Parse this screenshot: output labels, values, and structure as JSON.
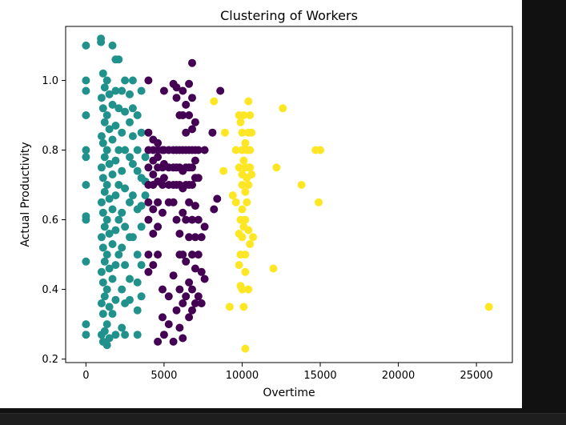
{
  "chart_data": {
    "type": "scatter",
    "title": "Clustering of Workers",
    "xlabel": "Overtime",
    "ylabel": "Actual Productivity",
    "xlim": [
      -1300,
      27300
    ],
    "ylim": [
      0.19,
      1.155
    ],
    "xticks": [
      0,
      5000,
      10000,
      15000,
      20000,
      25000
    ],
    "xtick_labels": [
      "0",
      "5000",
      "10000",
      "15000",
      "20000",
      "25000"
    ],
    "yticks": [
      0.2,
      0.4,
      0.6,
      0.8,
      1.0
    ],
    "ytick_labels": [
      "0.2",
      "0.4",
      "0.6",
      "0.8",
      "1.0"
    ],
    "grid": false,
    "legend": "none",
    "colormap": "viridis",
    "series": [
      {
        "color": "#21918c",
        "points": [
          [
            0,
            1.1
          ],
          [
            0,
            1.0
          ],
          [
            0,
            0.97
          ],
          [
            0,
            0.9
          ],
          [
            0,
            0.8
          ],
          [
            0,
            0.78
          ],
          [
            0,
            0.7
          ],
          [
            0,
            0.61
          ],
          [
            0,
            0.6
          ],
          [
            0,
            0.48
          ],
          [
            0,
            0.3
          ],
          [
            0,
            0.27
          ],
          [
            960,
            1.11
          ],
          [
            960,
            1.12
          ],
          [
            1000,
            0.95
          ],
          [
            1000,
            0.84
          ],
          [
            1000,
            0.75
          ],
          [
            1000,
            0.65
          ],
          [
            1000,
            0.55
          ],
          [
            1000,
            0.45
          ],
          [
            1000,
            0.36
          ],
          [
            1000,
            0.27
          ],
          [
            1100,
            1.02
          ],
          [
            1100,
            0.92
          ],
          [
            1100,
            0.82
          ],
          [
            1100,
            0.72
          ],
          [
            1100,
            0.62
          ],
          [
            1100,
            0.52
          ],
          [
            1100,
            0.42
          ],
          [
            1100,
            0.33
          ],
          [
            1100,
            0.25
          ],
          [
            1200,
            0.98
          ],
          [
            1200,
            0.88
          ],
          [
            1200,
            0.78
          ],
          [
            1200,
            0.68
          ],
          [
            1200,
            0.58
          ],
          [
            1200,
            0.48
          ],
          [
            1200,
            0.38
          ],
          [
            1200,
            0.28
          ],
          [
            1350,
            1.0
          ],
          [
            1350,
            0.9
          ],
          [
            1350,
            0.8
          ],
          [
            1350,
            0.7
          ],
          [
            1350,
            0.6
          ],
          [
            1350,
            0.5
          ],
          [
            1350,
            0.4
          ],
          [
            1350,
            0.3
          ],
          [
            1350,
            0.24
          ],
          [
            1500,
            0.96
          ],
          [
            1500,
            0.86
          ],
          [
            1500,
            0.76
          ],
          [
            1500,
            0.66
          ],
          [
            1500,
            0.56
          ],
          [
            1500,
            0.46
          ],
          [
            1500,
            0.35
          ],
          [
            1500,
            0.26
          ],
          [
            1700,
            1.1
          ],
          [
            1700,
            0.93
          ],
          [
            1700,
            0.83
          ],
          [
            1700,
            0.73
          ],
          [
            1700,
            0.63
          ],
          [
            1700,
            0.53
          ],
          [
            1700,
            0.43
          ],
          [
            1700,
            0.33
          ],
          [
            1900,
            1.06
          ],
          [
            1900,
            0.97
          ],
          [
            1900,
            0.87
          ],
          [
            1900,
            0.77
          ],
          [
            1900,
            0.67
          ],
          [
            1900,
            0.57
          ],
          [
            1900,
            0.47
          ],
          [
            1900,
            0.37
          ],
          [
            1900,
            0.27
          ],
          [
            2100,
            1.06
          ],
          [
            2100,
            0.92
          ],
          [
            2100,
            0.8
          ],
          [
            2100,
            0.7
          ],
          [
            2100,
            0.6
          ],
          [
            2100,
            0.5
          ],
          [
            2300,
            0.97
          ],
          [
            2300,
            0.85
          ],
          [
            2300,
            0.74
          ],
          [
            2300,
            0.62
          ],
          [
            2300,
            0.52
          ],
          [
            2300,
            0.4
          ],
          [
            2300,
            0.29
          ],
          [
            2500,
            1.0
          ],
          [
            2500,
            0.91
          ],
          [
            2500,
            0.8
          ],
          [
            2500,
            0.69
          ],
          [
            2500,
            0.58
          ],
          [
            2500,
            0.47
          ],
          [
            2500,
            0.36
          ],
          [
            2500,
            0.27
          ],
          [
            2800,
            0.96
          ],
          [
            2800,
            0.88
          ],
          [
            2800,
            0.78
          ],
          [
            2800,
            0.65
          ],
          [
            2800,
            0.55
          ],
          [
            2800,
            0.43
          ],
          [
            2800,
            0.37
          ],
          [
            3000,
            1.0
          ],
          [
            3000,
            0.92
          ],
          [
            3000,
            0.84
          ],
          [
            3000,
            0.76
          ],
          [
            3000,
            0.67
          ],
          [
            3000,
            0.55
          ],
          [
            3300,
            0.9
          ],
          [
            3300,
            0.8
          ],
          [
            3300,
            0.74
          ],
          [
            3300,
            0.63
          ],
          [
            3300,
            0.5
          ],
          [
            3300,
            0.42
          ],
          [
            3300,
            0.34
          ],
          [
            3300,
            0.27
          ],
          [
            3550,
            0.97
          ],
          [
            3550,
            0.85
          ],
          [
            3550,
            0.72
          ],
          [
            3550,
            0.64
          ],
          [
            3550,
            0.58
          ],
          [
            3550,
            0.47
          ],
          [
            3550,
            0.38
          ],
          [
            3800,
            0.78
          ],
          [
            3800,
            0.71
          ],
          [
            3800,
            0.67
          ]
        ]
      },
      {
        "color": "#440154",
        "points": [
          [
            4000,
            1.0
          ],
          [
            4000,
            0.85
          ],
          [
            4000,
            0.8
          ],
          [
            4000,
            0.75
          ],
          [
            4000,
            0.7
          ],
          [
            4000,
            0.65
          ],
          [
            4000,
            0.6
          ],
          [
            4000,
            0.5
          ],
          [
            4000,
            0.45
          ],
          [
            4300,
            0.83
          ],
          [
            4300,
            0.8
          ],
          [
            4300,
            0.77
          ],
          [
            4300,
            0.73
          ],
          [
            4300,
            0.7
          ],
          [
            4300,
            0.63
          ],
          [
            4300,
            0.56
          ],
          [
            4300,
            0.47
          ],
          [
            4600,
            0.82
          ],
          [
            4600,
            0.8
          ],
          [
            4600,
            0.78
          ],
          [
            4600,
            0.75
          ],
          [
            4600,
            0.71
          ],
          [
            4600,
            0.65
          ],
          [
            4600,
            0.58
          ],
          [
            4600,
            0.5
          ],
          [
            4600,
            0.25
          ],
          [
            4900,
            0.8
          ],
          [
            4900,
            0.75
          ],
          [
            4900,
            0.7
          ],
          [
            4900,
            0.62
          ],
          [
            4900,
            0.4
          ],
          [
            4900,
            0.32
          ],
          [
            5000,
            0.97
          ],
          [
            5000,
            0.8
          ],
          [
            5000,
            0.76
          ],
          [
            5000,
            0.72
          ],
          [
            5000,
            0.27
          ],
          [
            5300,
            0.8
          ],
          [
            5300,
            0.75
          ],
          [
            5300,
            0.7
          ],
          [
            5300,
            0.65
          ],
          [
            5300,
            0.38
          ],
          [
            5300,
            0.3
          ],
          [
            5600,
            0.99
          ],
          [
            5600,
            0.8
          ],
          [
            5600,
            0.75
          ],
          [
            5600,
            0.7
          ],
          [
            5600,
            0.65
          ],
          [
            5600,
            0.44
          ],
          [
            5600,
            0.25
          ],
          [
            5800,
            0.98
          ],
          [
            5800,
            0.95
          ],
          [
            5800,
            0.8
          ],
          [
            5800,
            0.75
          ],
          [
            5800,
            0.7
          ],
          [
            5800,
            0.6
          ],
          [
            5800,
            0.34
          ],
          [
            6000,
            0.9
          ],
          [
            6000,
            0.8
          ],
          [
            6000,
            0.75
          ],
          [
            6000,
            0.7
          ],
          [
            6000,
            0.56
          ],
          [
            6000,
            0.5
          ],
          [
            6000,
            0.4
          ],
          [
            6000,
            0.29
          ],
          [
            6200,
            0.97
          ],
          [
            6200,
            0.9
          ],
          [
            6200,
            0.8
          ],
          [
            6200,
            0.74
          ],
          [
            6200,
            0.69
          ],
          [
            6200,
            0.62
          ],
          [
            6200,
            0.5
          ],
          [
            6200,
            0.36
          ],
          [
            6200,
            0.26
          ],
          [
            6400,
            0.93
          ],
          [
            6400,
            0.85
          ],
          [
            6400,
            0.8
          ],
          [
            6400,
            0.75
          ],
          [
            6400,
            0.7
          ],
          [
            6400,
            0.6
          ],
          [
            6400,
            0.48
          ],
          [
            6400,
            0.38
          ],
          [
            6600,
            0.99
          ],
          [
            6600,
            0.9
          ],
          [
            6600,
            0.8
          ],
          [
            6600,
            0.75
          ],
          [
            6600,
            0.7
          ],
          [
            6600,
            0.65
          ],
          [
            6600,
            0.55
          ],
          [
            6600,
            0.42
          ],
          [
            6600,
            0.32
          ],
          [
            6800,
            1.05
          ],
          [
            6800,
            0.95
          ],
          [
            6800,
            0.86
          ],
          [
            6800,
            0.8
          ],
          [
            6800,
            0.75
          ],
          [
            6800,
            0.7
          ],
          [
            6800,
            0.6
          ],
          [
            6800,
            0.5
          ],
          [
            6800,
            0.4
          ],
          [
            6800,
            0.34
          ],
          [
            7000,
            0.88
          ],
          [
            7000,
            0.8
          ],
          [
            7000,
            0.77
          ],
          [
            7000,
            0.72
          ],
          [
            7000,
            0.64
          ],
          [
            7000,
            0.55
          ],
          [
            7000,
            0.46
          ],
          [
            7000,
            0.36
          ],
          [
            7200,
            0.8
          ],
          [
            7200,
            0.72
          ],
          [
            7200,
            0.6
          ],
          [
            7200,
            0.5
          ],
          [
            7200,
            0.38
          ],
          [
            7400,
            0.55
          ],
          [
            7400,
            0.45
          ],
          [
            7400,
            0.36
          ],
          [
            7600,
            0.8
          ],
          [
            7600,
            0.58
          ],
          [
            7600,
            0.43
          ],
          [
            8100,
            0.85
          ],
          [
            8200,
            0.63
          ],
          [
            8400,
            0.66
          ],
          [
            8600,
            0.97
          ]
        ]
      },
      {
        "color": "#fde725",
        "points": [
          [
            8200,
            0.94
          ],
          [
            8800,
            0.74
          ],
          [
            8900,
            0.85
          ],
          [
            9200,
            0.35
          ],
          [
            9400,
            0.67
          ],
          [
            9600,
            0.8
          ],
          [
            9600,
            0.65
          ],
          [
            9800,
            0.9
          ],
          [
            9800,
            0.75
          ],
          [
            9800,
            0.56
          ],
          [
            9800,
            0.47
          ],
          [
            9900,
            0.88
          ],
          [
            9900,
            0.6
          ],
          [
            9900,
            0.5
          ],
          [
            9900,
            0.41
          ],
          [
            10000,
            0.85
          ],
          [
            10000,
            0.8
          ],
          [
            10000,
            0.73
          ],
          [
            10000,
            0.7
          ],
          [
            10000,
            0.63
          ],
          [
            10000,
            0.55
          ],
          [
            10000,
            0.4
          ],
          [
            10100,
            0.9
          ],
          [
            10100,
            0.77
          ],
          [
            10100,
            0.58
          ],
          [
            10100,
            0.35
          ],
          [
            10200,
            0.82
          ],
          [
            10200,
            0.75
          ],
          [
            10200,
            0.68
          ],
          [
            10200,
            0.6
          ],
          [
            10200,
            0.5
          ],
          [
            10200,
            0.45
          ],
          [
            10200,
            0.23
          ],
          [
            10300,
            0.8
          ],
          [
            10300,
            0.72
          ],
          [
            10300,
            0.65
          ],
          [
            10400,
            0.94
          ],
          [
            10400,
            0.85
          ],
          [
            10400,
            0.75
          ],
          [
            10400,
            0.7
          ],
          [
            10400,
            0.57
          ],
          [
            10400,
            0.4
          ],
          [
            10500,
            0.9
          ],
          [
            10500,
            0.8
          ],
          [
            10500,
            0.75
          ],
          [
            10500,
            0.53
          ],
          [
            10600,
            0.85
          ],
          [
            10600,
            0.73
          ],
          [
            10700,
            0.55
          ],
          [
            12000,
            0.46
          ],
          [
            12200,
            0.75
          ],
          [
            12600,
            0.92
          ],
          [
            13800,
            0.7
          ],
          [
            14700,
            0.8
          ],
          [
            15000,
            0.8
          ],
          [
            14900,
            0.65
          ],
          [
            25800,
            0.35
          ]
        ]
      }
    ]
  }
}
